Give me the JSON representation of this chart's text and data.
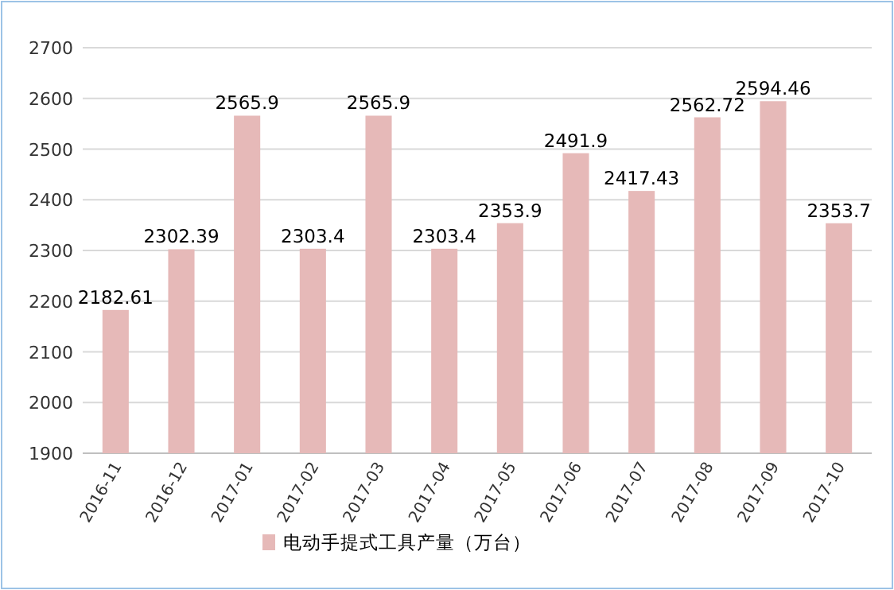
{
  "chart_data": {
    "type": "bar",
    "categories": [
      "2016-11",
      "2016-12",
      "2017-01",
      "2017-02",
      "2017-03",
      "2017-04",
      "2017-05",
      "2017-06",
      "2017-07",
      "2017-08",
      "2017-09",
      "2017-10"
    ],
    "series": [
      {
        "name": "电动手提式工具产量（万台）",
        "color": "#e6b9b8",
        "values": [
          2182.61,
          2302.39,
          2565.9,
          2303.4,
          2565.9,
          2303.4,
          2353.9,
          2491.9,
          2417.43,
          2562.72,
          2594.46,
          2353.7
        ]
      }
    ],
    "ylim": [
      1900,
      2700
    ],
    "yticks": [
      1900,
      2000,
      2100,
      2200,
      2300,
      2400,
      2500,
      2600,
      2700
    ],
    "grid": "y",
    "legend": "bottom",
    "data_labels": true
  }
}
